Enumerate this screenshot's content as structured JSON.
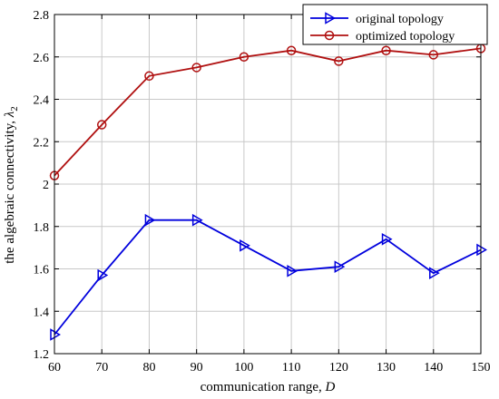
{
  "chart_data": {
    "type": "line",
    "x": [
      60,
      70,
      80,
      90,
      100,
      110,
      120,
      130,
      140,
      150
    ],
    "xlabel_text": "communication range, ",
    "xlabel_var": "D",
    "ylabel_text": "the algebraic connectivity, ",
    "ylabel_var": "λ",
    "ylabel_sub": "2",
    "xlim": [
      60,
      150
    ],
    "ylim": [
      1.2,
      2.8
    ],
    "xticks": [
      "60",
      "70",
      "80",
      "90",
      "100",
      "110",
      "120",
      "130",
      "140",
      "150"
    ],
    "yticks": [
      "1.2",
      "1.4",
      "1.6",
      "1.8",
      "2",
      "2.2",
      "2.4",
      "2.6",
      "2.8"
    ],
    "grid": true,
    "legend_position": "top-right",
    "series": [
      {
        "name": "original topology",
        "marker": "triangle-right",
        "color": "#0000dd",
        "values": [
          1.29,
          1.57,
          1.83,
          1.83,
          1.71,
          1.59,
          1.61,
          1.74,
          1.58,
          1.69
        ]
      },
      {
        "name": "optimized topology",
        "marker": "circle",
        "color": "#b01010",
        "values": [
          2.04,
          2.28,
          2.51,
          2.55,
          2.6,
          2.63,
          2.58,
          2.63,
          2.61,
          2.64
        ]
      }
    ]
  }
}
